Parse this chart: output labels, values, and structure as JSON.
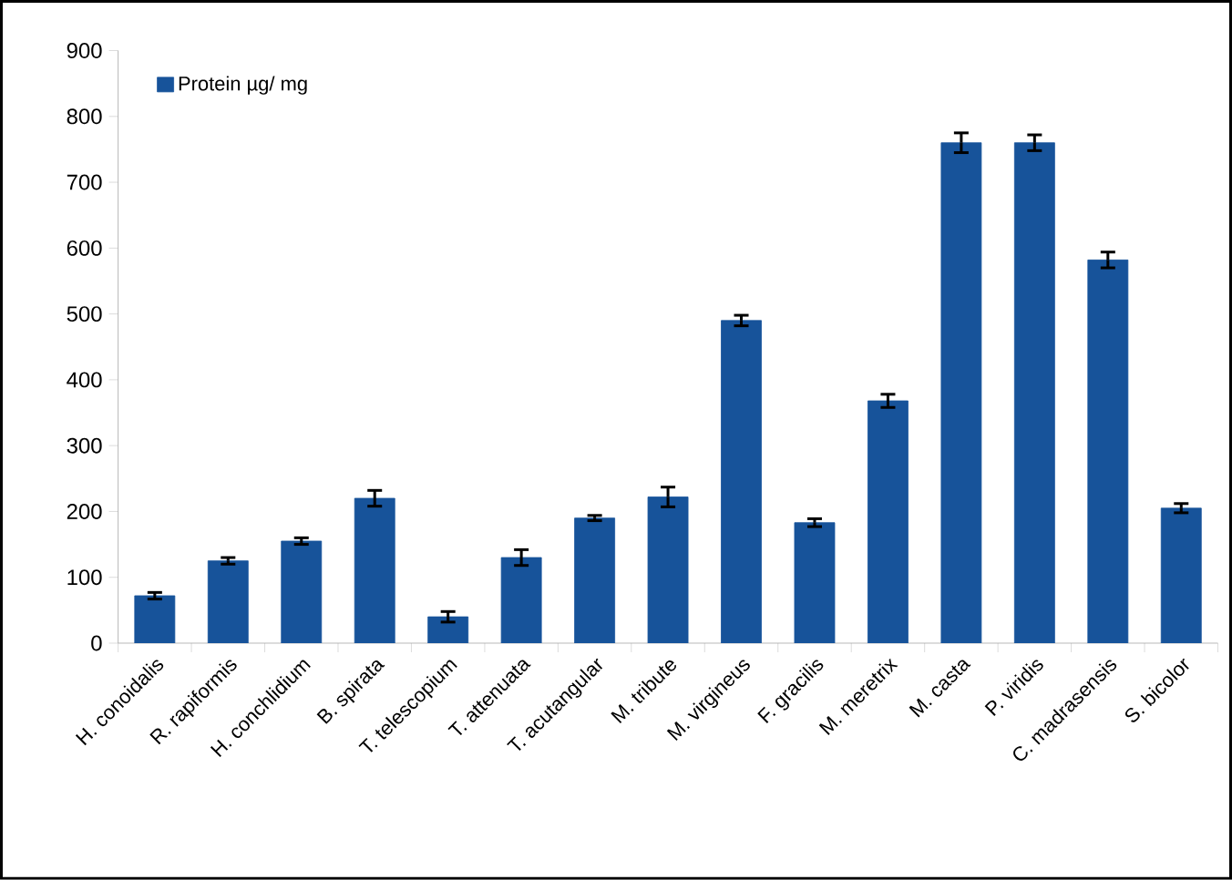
{
  "chart_data": {
    "type": "bar",
    "categories": [
      "H. conoidalis",
      "R. rapiformis",
      "H. conchlidium",
      "B. spirata",
      "T. telescopium",
      "T. attenuata",
      "T. acutangular",
      "M. tribute",
      "M. virgineus",
      "F. gracilis",
      "M. meretrix",
      "M. casta",
      "P. viridis",
      "C. madrasensis",
      "S. bicolor"
    ],
    "series": [
      {
        "name": "Protein µg/ mg",
        "color": "#17539a",
        "values": [
          72,
          125,
          155,
          220,
          40,
          130,
          190,
          222,
          490,
          183,
          368,
          760,
          760,
          582,
          205
        ],
        "errors": [
          5,
          5,
          5,
          12,
          8,
          12,
          4,
          15,
          8,
          6,
          10,
          15,
          12,
          12,
          7
        ]
      }
    ],
    "ylim": [
      0,
      900
    ],
    "yticks": [
      0,
      100,
      200,
      300,
      400,
      500,
      600,
      700,
      800,
      900
    ],
    "grid": false,
    "legend": "top left"
  }
}
